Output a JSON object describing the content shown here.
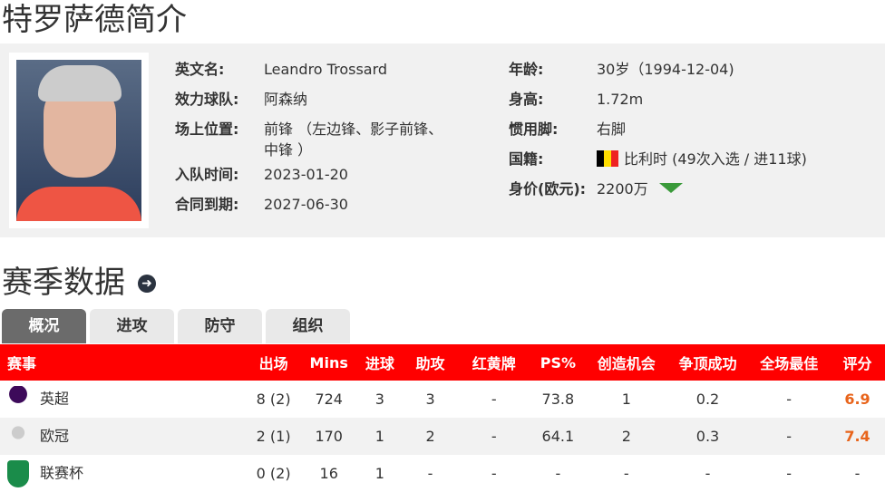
{
  "title": "特罗萨德简介",
  "profile": {
    "left": [
      {
        "label": "英文名:",
        "value": "Leandro Trossard"
      },
      {
        "label": "效力球队:",
        "value": "阿森纳"
      },
      {
        "label": "场上位置:",
        "value": "前锋 （左边锋、影子前锋、",
        "value2": "中锋 ）"
      },
      {
        "label": "入队时间:",
        "value": "2023-01-20"
      },
      {
        "label": "合同到期:",
        "value": "2027-06-30"
      }
    ],
    "right": [
      {
        "label": "年龄:",
        "value": "30岁（1994-12-04)"
      },
      {
        "label": "身高:",
        "value": "1.72m"
      },
      {
        "label": "惯用脚:",
        "value": "右脚"
      },
      {
        "label": "国籍:",
        "value": "比利时 (49次入选 / 进11球)"
      },
      {
        "label": "身价(欧元):",
        "value": "2200万"
      }
    ],
    "value_trend": "down",
    "flag": "belgium"
  },
  "season": {
    "title": "赛季数据",
    "tabs": [
      "概况",
      "进攻",
      "防守",
      "组织"
    ],
    "active_tab": 0,
    "headers": [
      "赛事",
      "出场",
      "Mins",
      "进球",
      "助攻",
      "红黄牌",
      "PS%",
      "创造机会",
      "争顶成功",
      "全场最佳",
      "评分"
    ],
    "rows": [
      [
        "英超",
        "8 (2)",
        "724",
        "3",
        "3",
        "-",
        "73.8",
        "1",
        "0.2",
        "-",
        "6.9"
      ],
      [
        "欧冠",
        "2 (1)",
        "170",
        "1",
        "2",
        "-",
        "64.1",
        "2",
        "0.3",
        "-",
        "7.4"
      ],
      [
        "联赛杯",
        "0 (2)",
        "16",
        "1",
        "-",
        "-",
        "-",
        "-",
        "-",
        "-",
        "-"
      ]
    ],
    "logos": [
      "premier-league",
      "champions-league",
      "carabao-cup"
    ]
  },
  "colors": {
    "header": "#ff0000",
    "rating": "#e8641b",
    "trend_down": "#3a9a3a"
  }
}
